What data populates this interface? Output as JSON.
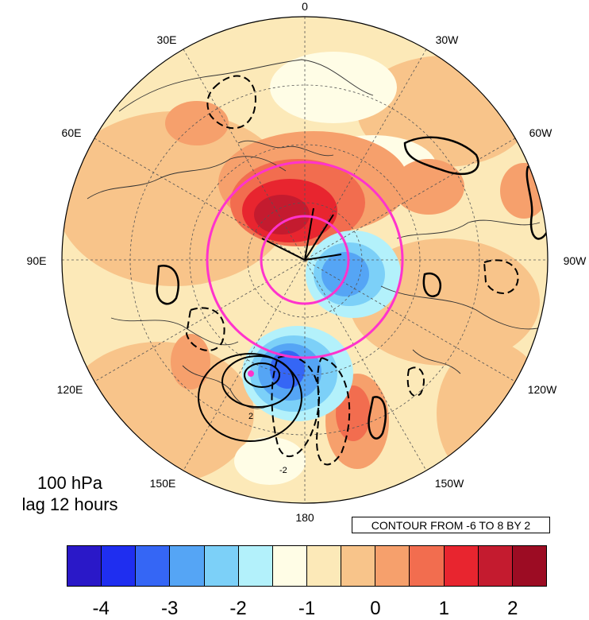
{
  "title": {
    "level": "100 hPa",
    "lag": "lag 12 hours"
  },
  "contour_info": "CONTOUR FROM -6 TO 8 BY 2",
  "longitude_labels": {
    "l0": "0",
    "l30e": "30E",
    "l30w": "30W",
    "l60e": "60E",
    "l60w": "60W",
    "l90e": "90E",
    "l90w": "90W",
    "l120e": "120E",
    "l120w": "120W",
    "l150e": "150E",
    "l150w": "150W",
    "l180": "180"
  },
  "colorbar": {
    "colors": [
      "#2a18c8",
      "#1f2ef0",
      "#3566f5",
      "#55a5f5",
      "#7cd0f8",
      "#b3f1fb",
      "#fffde6",
      "#fce9b8",
      "#f8c48a",
      "#f6a06c",
      "#f26d4f",
      "#e8252f",
      "#c41b2f",
      "#9c0c23"
    ],
    "tick_labels": [
      "-4",
      "-3",
      "-2",
      "-1",
      "0",
      "1",
      "2"
    ]
  },
  "contour_labels": {
    "positive": "2",
    "negative": "-2"
  },
  "marker_color": "#ff33cc"
}
